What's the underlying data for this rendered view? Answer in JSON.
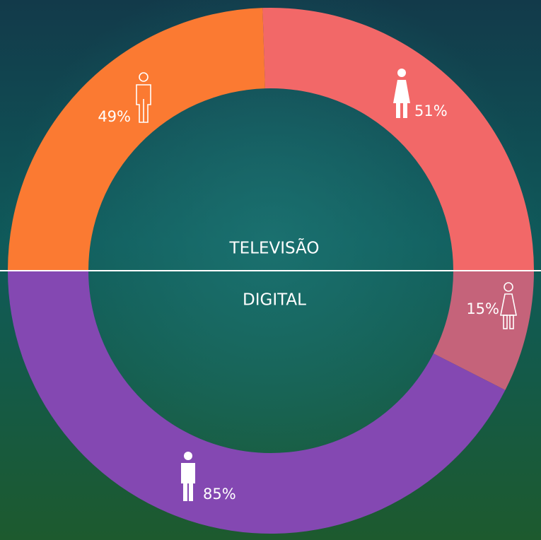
{
  "chart_data": [
    {
      "type": "half-donut",
      "title": "TELEVISÃO",
      "values": [
        49,
        51
      ],
      "value_labels": [
        "49%",
        "51%"
      ],
      "colors": [
        "#fb7a32",
        "#f26868"
      ]
    },
    {
      "type": "half-donut",
      "title": "DIGITAL",
      "values": [
        15,
        85
      ],
      "value_labels": [
        "15%",
        "85%"
      ],
      "colors": [
        "#c5637a",
        "#8448b2"
      ]
    }
  ]
}
